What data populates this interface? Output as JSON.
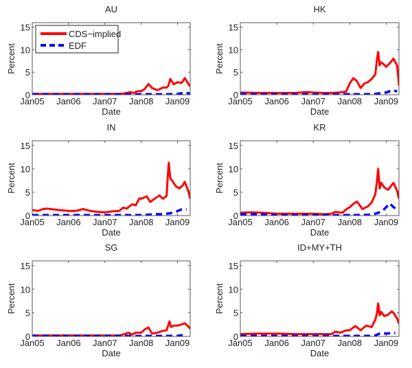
{
  "chart_data": [
    {
      "type": "line",
      "title": "AU",
      "xlabel": "Date",
      "ylabel": "Percent",
      "ylim": [
        0,
        16
      ],
      "xlim": [
        0,
        4.35
      ],
      "x_unit": "years since Jan05",
      "xticks": [
        {
          "v": 0,
          "label": "Jan05"
        },
        {
          "v": 1,
          "label": "Jan06"
        },
        {
          "v": 2,
          "label": "Jan07"
        },
        {
          "v": 3,
          "label": "Jan08"
        },
        {
          "v": 4,
          "label": "Jan09"
        }
      ],
      "yticks": [
        {
          "v": 0,
          "label": "0"
        },
        {
          "v": 5,
          "label": "5"
        },
        {
          "v": 10,
          "label": "10"
        },
        {
          "v": 15,
          "label": "15"
        }
      ],
      "legend": {
        "placement": "top-left",
        "entries": [
          {
            "label": "CDS−implied",
            "series": "CDS-implied"
          },
          {
            "label": "EDF",
            "series": "EDF"
          }
        ]
      },
      "series": [
        {
          "name": "CDS-implied",
          "color": "#ff0000",
          "style": "solid",
          "x": [
            0,
            0.3,
            0.6,
            1.0,
            1.5,
            2.0,
            2.4,
            2.55,
            2.7,
            2.8,
            2.9,
            3.0,
            3.1,
            3.2,
            3.3,
            3.45,
            3.6,
            3.7,
            3.75,
            3.8,
            3.9,
            4.0,
            4.1,
            4.15,
            4.2,
            4.3,
            4.35
          ],
          "y": [
            0.2,
            0.2,
            0.2,
            0.2,
            0.2,
            0.2,
            0.2,
            0.3,
            0.6,
            0.4,
            0.8,
            0.8,
            1.3,
            2.4,
            1.5,
            1.0,
            1.6,
            1.6,
            2.0,
            3.5,
            2.3,
            2.8,
            2.6,
            3.0,
            3.7,
            2.4,
            1.9
          ]
        },
        {
          "name": "EDF",
          "color": "#0000ff",
          "style": "dashed",
          "x": [
            0,
            0.5,
            1.0,
            1.5,
            2.0,
            2.5,
            3.0,
            3.5,
            3.8,
            4.0,
            4.1,
            4.2,
            4.3,
            4.35
          ],
          "y": [
            0.1,
            0.1,
            0.1,
            0.1,
            0.1,
            0.1,
            0.1,
            0.1,
            0.1,
            0.2,
            0.3,
            0.5,
            0.3,
            0.2
          ]
        }
      ]
    },
    {
      "type": "line",
      "title": "HK",
      "xlabel": "Date",
      "ylabel": "Percent",
      "ylim": [
        0,
        16
      ],
      "xlim": [
        0,
        4.35
      ],
      "x_unit": "years since Jan05",
      "xticks": [
        {
          "v": 0,
          "label": "Jan05"
        },
        {
          "v": 1,
          "label": "Jan06"
        },
        {
          "v": 2,
          "label": "Jan07"
        },
        {
          "v": 3,
          "label": "Jan08"
        },
        {
          "v": 4,
          "label": "Jan09"
        }
      ],
      "yticks": [
        {
          "v": 0,
          "label": "0"
        },
        {
          "v": 5,
          "label": "5"
        },
        {
          "v": 10,
          "label": "10"
        },
        {
          "v": 15,
          "label": "15"
        }
      ],
      "series": [
        {
          "name": "CDS-implied",
          "color": "#ff0000",
          "style": "solid",
          "x": [
            0,
            0.5,
            1.0,
            1.5,
            1.8,
            2.0,
            2.3,
            2.5,
            2.7,
            2.9,
            3.0,
            3.1,
            3.2,
            3.3,
            3.4,
            3.5,
            3.6,
            3.7,
            3.75,
            3.78,
            3.82,
            3.85,
            3.9,
            4.0,
            4.1,
            4.2,
            4.3,
            4.33,
            4.35
          ],
          "y": [
            0.5,
            0.4,
            0.4,
            0.4,
            0.6,
            0.5,
            0.4,
            0.4,
            0.5,
            0.7,
            2.5,
            3.7,
            3.0,
            1.5,
            2.5,
            2.8,
            3.5,
            4.5,
            8.0,
            9.5,
            6.5,
            7.2,
            7.0,
            6.2,
            7.0,
            8.0,
            6.5,
            4.0,
            2.0
          ]
        },
        {
          "name": "EDF",
          "color": "#0000ff",
          "style": "dashed",
          "x": [
            0,
            0.5,
            1.0,
            1.5,
            2.0,
            2.5,
            3.0,
            3.5,
            3.7,
            3.9,
            4.0,
            4.1,
            4.2,
            4.3
          ],
          "y": [
            0.2,
            0.1,
            0.1,
            0.1,
            0.1,
            0.1,
            0.1,
            0.1,
            0.2,
            0.4,
            0.5,
            0.8,
            1.0,
            0.7
          ]
        }
      ]
    },
    {
      "type": "line",
      "title": "IN",
      "xlabel": "Date",
      "ylabel": "Percent",
      "ylim": [
        0,
        16
      ],
      "xlim": [
        0,
        4.35
      ],
      "x_unit": "years since Jan05",
      "xticks": [
        {
          "v": 0,
          "label": "Jan05"
        },
        {
          "v": 1,
          "label": "Jan06"
        },
        {
          "v": 2,
          "label": "Jan07"
        },
        {
          "v": 3,
          "label": "Jan08"
        },
        {
          "v": 4,
          "label": "Jan09"
        }
      ],
      "yticks": [
        {
          "v": 0,
          "label": "0"
        },
        {
          "v": 5,
          "label": "5"
        },
        {
          "v": 10,
          "label": "10"
        },
        {
          "v": 15,
          "label": "15"
        }
      ],
      "series": [
        {
          "name": "CDS-implied",
          "color": "#ff0000",
          "style": "solid",
          "x": [
            0,
            0.15,
            0.3,
            0.4,
            0.5,
            0.7,
            1.0,
            1.2,
            1.4,
            1.6,
            1.8,
            2.0,
            2.2,
            2.4,
            2.5,
            2.6,
            2.75,
            2.85,
            2.95,
            3.0,
            3.15,
            3.25,
            3.35,
            3.5,
            3.6,
            3.7,
            3.73,
            3.76,
            3.8,
            3.85,
            3.95,
            4.05,
            4.15,
            4.2,
            4.3,
            4.35
          ],
          "y": [
            1.2,
            1.0,
            1.4,
            1.5,
            1.4,
            1.2,
            1.0,
            1.0,
            1.4,
            1.0,
            0.8,
            0.7,
            0.9,
            1.0,
            1.7,
            1.5,
            2.4,
            2.2,
            3.7,
            3.6,
            4.1,
            2.9,
            3.5,
            4.3,
            3.6,
            4.2,
            8.0,
            11.3,
            8.0,
            7.5,
            6.3,
            5.8,
            6.5,
            7.2,
            5.2,
            3.6
          ]
        },
        {
          "name": "EDF",
          "color": "#0000ff",
          "style": "dashed",
          "x": [
            0,
            0.5,
            1.0,
            1.5,
            2.0,
            2.5,
            3.0,
            3.2,
            3.4,
            3.6,
            3.8,
            3.95,
            4.1,
            4.25
          ],
          "y": [
            0.1,
            0.1,
            0.1,
            0.1,
            0.1,
            0.1,
            0.1,
            0.2,
            0.3,
            0.3,
            0.5,
            0.8,
            1.3,
            1.3
          ]
        }
      ]
    },
    {
      "type": "line",
      "title": "KR",
      "xlabel": "Date",
      "ylabel": "Percent",
      "ylim": [
        0,
        16
      ],
      "xlim": [
        0,
        4.35
      ],
      "x_unit": "years since Jan05",
      "xticks": [
        {
          "v": 0,
          "label": "Jan05"
        },
        {
          "v": 1,
          "label": "Jan06"
        },
        {
          "v": 2,
          "label": "Jan07"
        },
        {
          "v": 3,
          "label": "Jan08"
        },
        {
          "v": 4,
          "label": "Jan09"
        }
      ],
      "yticks": [
        {
          "v": 0,
          "label": "0"
        },
        {
          "v": 5,
          "label": "5"
        },
        {
          "v": 10,
          "label": "10"
        },
        {
          "v": 15,
          "label": "15"
        }
      ],
      "series": [
        {
          "name": "CDS-implied",
          "color": "#ff0000",
          "style": "solid",
          "x": [
            0,
            0.3,
            0.6,
            1.0,
            1.5,
            2.0,
            2.3,
            2.5,
            2.6,
            2.8,
            2.9,
            3.0,
            3.1,
            3.2,
            3.35,
            3.5,
            3.6,
            3.7,
            3.75,
            3.78,
            3.82,
            3.86,
            3.95,
            4.05,
            4.15,
            4.2,
            4.3,
            4.35
          ],
          "y": [
            0.6,
            0.7,
            0.6,
            0.4,
            0.4,
            0.4,
            0.3,
            0.4,
            0.8,
            0.6,
            1.3,
            1.8,
            2.5,
            3.0,
            1.4,
            2.0,
            2.8,
            4.5,
            7.5,
            10.0,
            5.8,
            7.0,
            6.0,
            5.5,
            6.5,
            7.0,
            5.3,
            3.6
          ]
        },
        {
          "name": "EDF",
          "color": "#0000ff",
          "style": "dashed",
          "x": [
            0,
            0.3,
            0.5,
            1.0,
            1.5,
            2.0,
            2.5,
            3.0,
            3.3,
            3.6,
            3.75,
            3.9,
            4.0,
            4.1,
            4.2,
            4.3
          ],
          "y": [
            0.3,
            0.3,
            0.3,
            0.1,
            0.1,
            0.1,
            0.1,
            0.1,
            0.1,
            0.2,
            0.5,
            1.0,
            1.8,
            2.6,
            1.8,
            1.3
          ]
        }
      ]
    },
    {
      "type": "line",
      "title": "SG",
      "xlabel": "Date",
      "ylabel": "Percent",
      "ylim": [
        0,
        16
      ],
      "xlim": [
        0,
        4.35
      ],
      "x_unit": "years since Jan05",
      "xticks": [
        {
          "v": 0,
          "label": "Jan05"
        },
        {
          "v": 1,
          "label": "Jan06"
        },
        {
          "v": 2,
          "label": "Jan07"
        },
        {
          "v": 3,
          "label": "Jan08"
        },
        {
          "v": 4,
          "label": "Jan09"
        }
      ],
      "yticks": [
        {
          "v": 0,
          "label": "0"
        },
        {
          "v": 5,
          "label": "5"
        },
        {
          "v": 10,
          "label": "10"
        },
        {
          "v": 15,
          "label": "15"
        }
      ],
      "series": [
        {
          "name": "CDS-implied",
          "color": "#ff0000",
          "style": "solid",
          "x": [
            0,
            0.5,
            1.0,
            1.5,
            2.0,
            2.4,
            2.55,
            2.65,
            2.75,
            2.85,
            3.0,
            3.1,
            3.2,
            3.3,
            3.45,
            3.6,
            3.7,
            3.78,
            3.82,
            3.9,
            4.0,
            4.1,
            4.2,
            4.3,
            4.35
          ],
          "y": [
            0.2,
            0.2,
            0.2,
            0.2,
            0.2,
            0.2,
            0.5,
            0.8,
            0.4,
            0.8,
            0.8,
            1.5,
            1.9,
            0.6,
            0.8,
            1.2,
            1.3,
            3.2,
            2.0,
            2.3,
            2.3,
            2.5,
            2.8,
            2.1,
            1.6
          ]
        },
        {
          "name": "EDF",
          "color": "#0000ff",
          "style": "dashed",
          "x": [
            0,
            0.5,
            1.0,
            1.5,
            2.0,
            2.5,
            3.0,
            3.5,
            3.8,
            4.0,
            4.15,
            4.25
          ],
          "y": [
            0.1,
            0.1,
            0.1,
            0.1,
            0.1,
            0.1,
            0.1,
            0.1,
            0.1,
            0.1,
            0.3,
            0.2
          ]
        }
      ]
    },
    {
      "type": "line",
      "title": "ID+MY+TH",
      "xlabel": "Date",
      "ylabel": "Percent",
      "ylim": [
        0,
        16
      ],
      "xlim": [
        0,
        4.35
      ],
      "x_unit": "years since Jan05",
      "xticks": [
        {
          "v": 0,
          "label": "Jan05"
        },
        {
          "v": 1,
          "label": "Jan06"
        },
        {
          "v": 2,
          "label": "Jan07"
        },
        {
          "v": 3,
          "label": "Jan08"
        },
        {
          "v": 4,
          "label": "Jan09"
        }
      ],
      "yticks": [
        {
          "v": 0,
          "label": "0"
        },
        {
          "v": 5,
          "label": "5"
        },
        {
          "v": 10,
          "label": "10"
        },
        {
          "v": 15,
          "label": "15"
        }
      ],
      "series": [
        {
          "name": "CDS-implied",
          "color": "#ff0000",
          "style": "solid",
          "x": [
            0,
            0.5,
            1.0,
            1.5,
            2.0,
            2.3,
            2.5,
            2.6,
            2.75,
            2.9,
            3.0,
            3.15,
            3.3,
            3.45,
            3.6,
            3.7,
            3.75,
            3.78,
            3.82,
            3.86,
            3.95,
            4.05,
            4.15,
            4.2,
            4.3,
            4.35
          ],
          "y": [
            0.5,
            0.6,
            0.6,
            0.5,
            0.5,
            0.5,
            0.5,
            1.0,
            0.8,
            1.3,
            1.3,
            2.2,
            1.3,
            2.3,
            2.0,
            3.5,
            5.0,
            7.0,
            4.5,
            5.2,
            4.3,
            4.6,
            5.3,
            5.0,
            3.8,
            2.7
          ]
        },
        {
          "name": "EDF",
          "color": "#0000ff",
          "style": "dashed",
          "x": [
            0,
            0.5,
            1.0,
            1.5,
            2.0,
            2.5,
            3.0,
            3.5,
            3.7,
            3.85,
            4.0,
            4.15,
            4.25
          ],
          "y": [
            0.1,
            0.1,
            0.1,
            0.1,
            0.1,
            0.1,
            0.1,
            0.1,
            0.2,
            0.7,
            0.6,
            0.7,
            0.7
          ]
        }
      ]
    }
  ]
}
